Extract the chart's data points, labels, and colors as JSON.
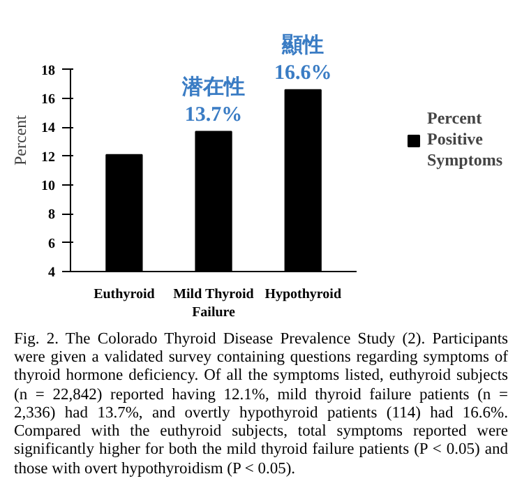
{
  "chart_data": {
    "type": "bar",
    "ylabel": "Percent",
    "categories": [
      "Euthyroid",
      "Mild Thyroid Failure",
      "Hypothyroid"
    ],
    "series": [
      {
        "name": "Percent Positive Symptoms",
        "color": "#000000",
        "values": [
          12.1,
          13.7,
          16.6
        ],
        "value_labels": [
          null,
          "潜在性\n13.7%",
          "顯性\n16.6%"
        ]
      }
    ],
    "ylim": [
      4,
      18
    ],
    "yticks": [
      4,
      6,
      8,
      10,
      12,
      14,
      16,
      18
    ],
    "grid": false,
    "legend": "right",
    "annotations": [
      "Fig. 2. The Colorado Thyroid Disease Prevalence Study (2). Participants were given a validated survey containing questions regarding symptoms of thyroid hormone deficiency. Of all the symptoms listed, euthyroid subjects (n = 22,842) reported having 12.1%, mild thyroid failure patients (n = 2,336) had 13.7%, and overtly hypothyroid patients (114) had 16.6%. Compared with the euthyroid subjects, total symptoms reported were significantly higher for both the mild thyroid failure patients (P < 0.05) and those with overt hypothyroidism (P < 0.05)."
    ]
  }
}
